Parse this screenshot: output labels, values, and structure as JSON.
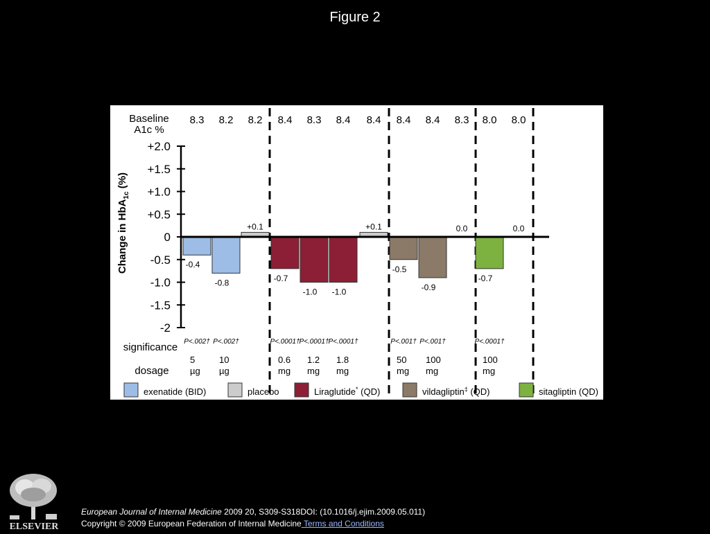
{
  "slide": {
    "title": "Figure 2"
  },
  "chart_data": {
    "type": "bar",
    "ylabel_main": "Change in HbA",
    "ylabel_sub": "1c",
    "ylabel_tail": " (%)",
    "ylim": [
      -2,
      2
    ],
    "yticks": [
      "+2.0",
      "+1.5",
      "+1.0",
      "+0.5",
      "0",
      "-0.5",
      "-1.0",
      "-1.5",
      "-2"
    ],
    "ytick_values": [
      2,
      1.5,
      1,
      0.5,
      0,
      -0.5,
      -1,
      -1.5,
      -2
    ],
    "baseline_label": [
      "Baseline",
      "A1c %"
    ],
    "significance_label": "significance",
    "dosage_label": "dosage",
    "bars": [
      {
        "series": "exenatide",
        "value": -0.4,
        "label": "-0.4",
        "baseline": "8.3",
        "significance": "P<.002†",
        "dosage": [
          "5",
          "µg"
        ]
      },
      {
        "series": "exenatide",
        "value": -0.8,
        "label": "-0.8",
        "baseline": "8.2",
        "significance": "P<.002†",
        "dosage": [
          "10",
          "µg"
        ]
      },
      {
        "series": "placebo",
        "value": 0.1,
        "label": "+0.1",
        "baseline": "8.2",
        "significance": "",
        "dosage": [
          "",
          ""
        ]
      },
      {
        "series": "liraglutide",
        "value": -0.7,
        "label": "-0.7",
        "baseline": "8.4",
        "significance": "P<.0001†",
        "dosage": [
          "0.6",
          "mg"
        ]
      },
      {
        "series": "liraglutide",
        "value": -1.0,
        "label": "-1.0",
        "baseline": "8.3",
        "significance": "P<.0001†",
        "dosage": [
          "1.2",
          "mg"
        ]
      },
      {
        "series": "liraglutide",
        "value": -1.0,
        "label": "-1.0",
        "baseline": "8.4",
        "significance": "P<.0001†",
        "dosage": [
          "1.8",
          "mg"
        ]
      },
      {
        "series": "placebo",
        "value": 0.1,
        "label": "+0.1",
        "baseline": "8.4",
        "significance": "",
        "dosage": [
          "",
          ""
        ]
      },
      {
        "series": "vildagliptin",
        "value": -0.5,
        "label": "-0.5",
        "baseline": "8.4",
        "significance": "P<.001†",
        "dosage": [
          "50",
          "mg"
        ]
      },
      {
        "series": "vildagliptin",
        "value": -0.9,
        "label": "-0.9",
        "baseline": "8.4",
        "significance": "P<.001†",
        "dosage": [
          "100",
          "mg"
        ]
      },
      {
        "series": "placebo",
        "value": 0.0,
        "label": "0.0",
        "baseline": "8.3",
        "significance": "",
        "dosage": [
          "",
          ""
        ]
      },
      {
        "series": "sitagliptin",
        "value": -0.7,
        "label": "-0.7",
        "baseline": "8.0",
        "significance": "P<.0001†",
        "dosage": [
          "100",
          "mg"
        ]
      },
      {
        "series": "placebo",
        "value": 0.0,
        "label": "0.0",
        "baseline": "8.0",
        "significance": "",
        "dosage": [
          "",
          ""
        ]
      }
    ],
    "legend": [
      {
        "key": "exenatide",
        "text": "exenatide (BID)",
        "sup": "",
        "tail": "",
        "color": "#9dbde6"
      },
      {
        "key": "placebo",
        "text": "placebo",
        "sup": "",
        "tail": "",
        "color": "#cccccc"
      },
      {
        "key": "liraglutide",
        "text": "Liraglutide",
        "sup": "*",
        "tail": " (QD)",
        "color": "#8c1f35"
      },
      {
        "key": "vildagliptin",
        "text": "vildagliptin",
        "sup": "‡",
        "tail": " (QD)",
        "color": "#8b7a68"
      },
      {
        "key": "sitagliptin",
        "text": "sitagliptin (QD)",
        "sup": "",
        "tail": "",
        "color": "#7db241"
      }
    ],
    "colors": {
      "exenatide": "#9dbde6",
      "placebo": "#cccccc",
      "liraglutide": "#8c1f35",
      "vildagliptin": "#8b7a68",
      "sitagliptin": "#7db241"
    }
  },
  "footer": {
    "journal": "European Journal of Internal Medicine",
    "citation": " 2009 20, S309-S318DOI: (10.1016/j.ejim.2009.05.011)",
    "copyright": "Copyright © 2009 European Federation of Internal Medicine",
    "terms_link": " Terms and Conditions"
  },
  "logo": {
    "text": "ELSEVIER"
  }
}
